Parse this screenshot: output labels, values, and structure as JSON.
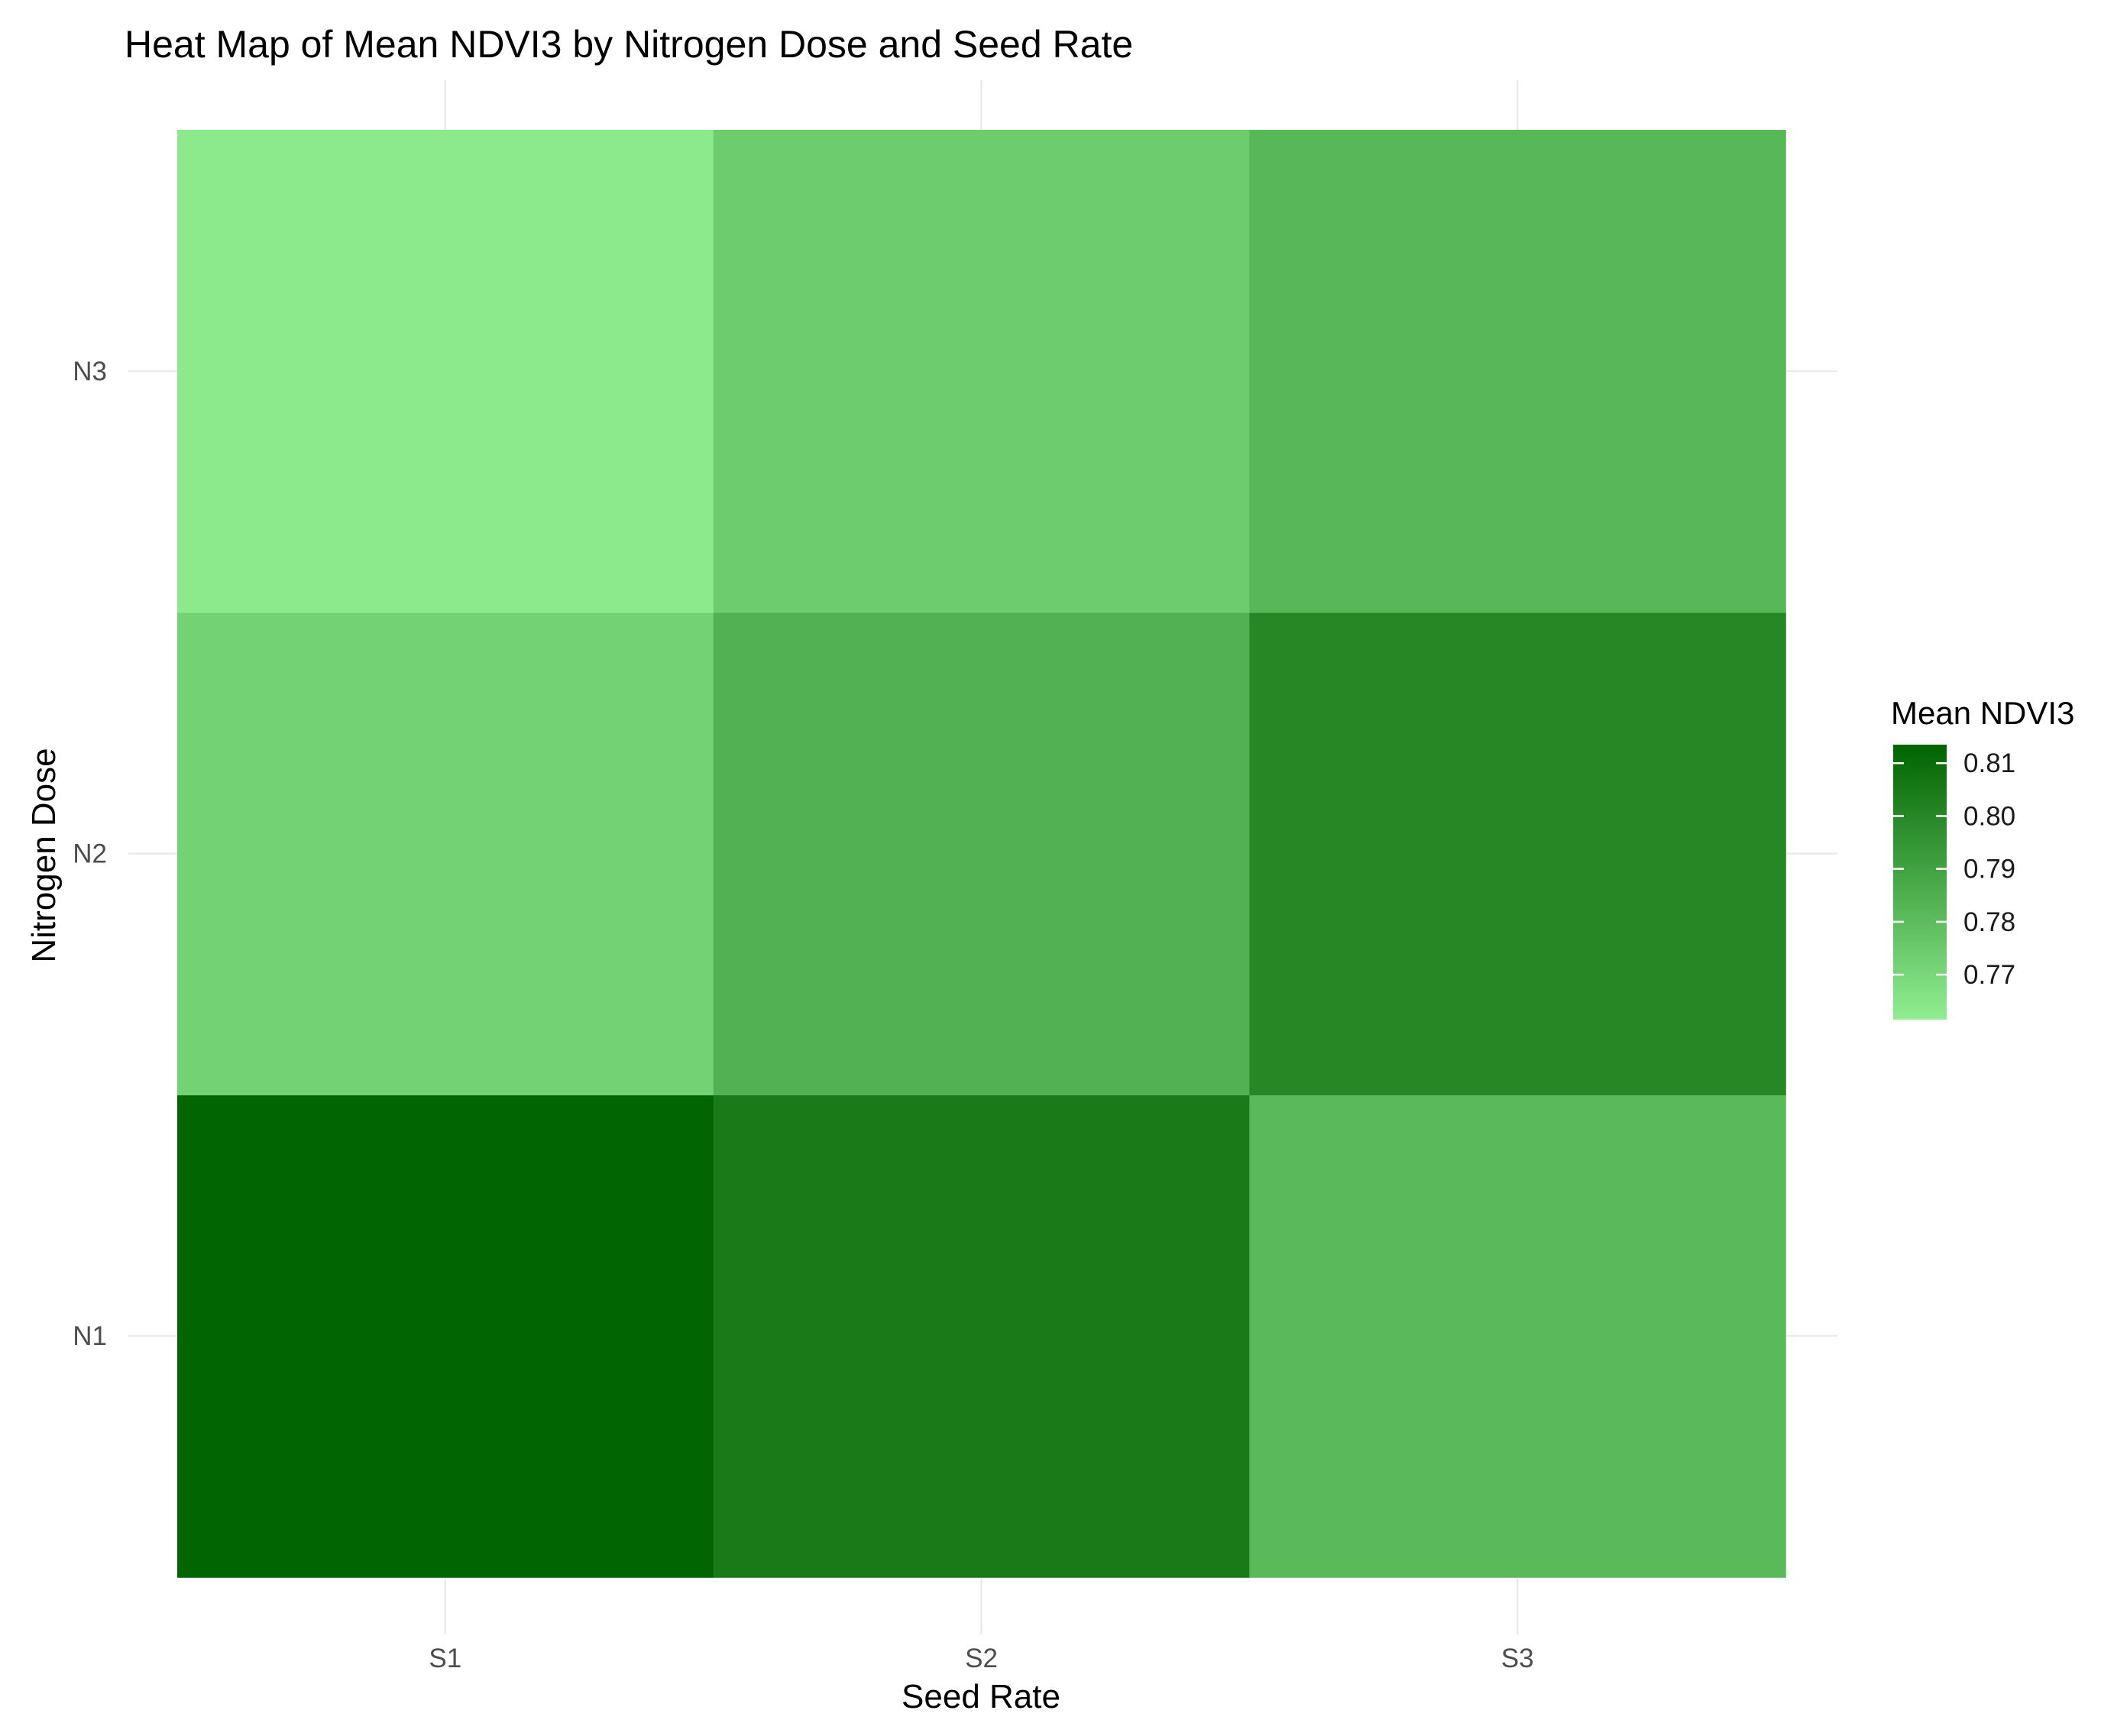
{
  "chart_data": {
    "type": "heatmap",
    "title": "Heat Map of Mean NDVI3 by Nitrogen Dose and Seed Rate",
    "xlabel": "Seed Rate",
    "ylabel": "Nitrogen Dose",
    "x_categories": [
      "S1",
      "S2",
      "S3"
    ],
    "y_categories": [
      "N1",
      "N2",
      "N3"
    ],
    "cells": [
      {
        "x": "S1",
        "y": "N1",
        "value": 0.813
      },
      {
        "x": "S2",
        "y": "N1",
        "value": 0.805
      },
      {
        "x": "S3",
        "y": "N1",
        "value": 0.781
      },
      {
        "x": "S1",
        "y": "N2",
        "value": 0.772
      },
      {
        "x": "S2",
        "y": "N2",
        "value": 0.784
      },
      {
        "x": "S3",
        "y": "N2",
        "value": 0.8
      },
      {
        "x": "S1",
        "y": "N3",
        "value": 0.763
      },
      {
        "x": "S2",
        "y": "N3",
        "value": 0.774
      },
      {
        "x": "S3",
        "y": "N3",
        "value": 0.782
      }
    ],
    "legend": {
      "title": "Mean NDVI3",
      "position": "right",
      "min": 0.7615,
      "max": 0.8135,
      "ticks": [
        "0.81",
        "0.80",
        "0.79",
        "0.78",
        "0.77"
      ],
      "tick_values": [
        0.81,
        0.8,
        0.79,
        0.78,
        0.77
      ],
      "low_color": "#90EE90",
      "high_color": "#006400"
    },
    "grid": true
  }
}
